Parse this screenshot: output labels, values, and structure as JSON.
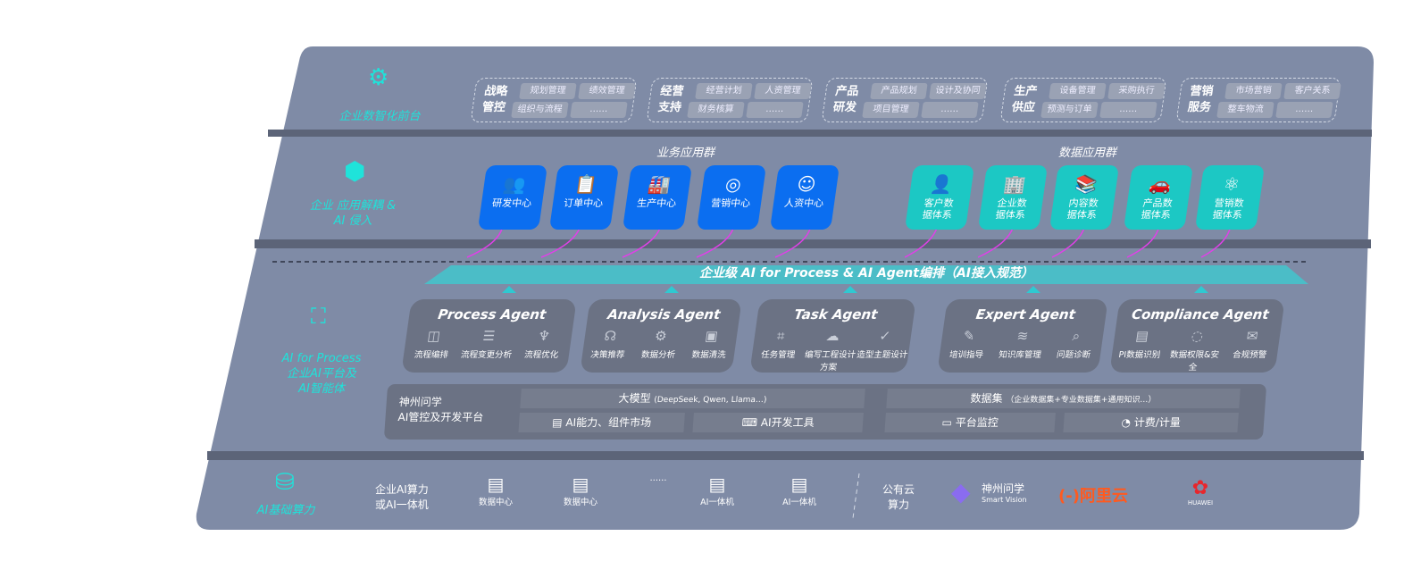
{
  "layers": {
    "front": "企业数智化前台",
    "apps": "企业 应用解耦 & AI 侵入",
    "ai": {
      "line1": "AI for Process",
      "line2": "企业AI平台及",
      "line3": "AI智能体"
    },
    "infra": "AI基础算力"
  },
  "groups": [
    {
      "title": "战略管控",
      "chips": [
        "规划管理",
        "绩效管理",
        "组织与流程",
        "……"
      ]
    },
    {
      "title": "经营支持",
      "chips": [
        "经营计划",
        "人资管理",
        "财务核算",
        "……"
      ]
    },
    {
      "title": "产品研发",
      "chips": [
        "产品规划",
        "设计及协同",
        "项目管理",
        "……"
      ]
    },
    {
      "title": "生产供应",
      "chips": [
        "设备管理",
        "采购执行",
        "预测与订单",
        "……"
      ]
    },
    {
      "title": "营销服务",
      "chips": [
        "市场营销",
        "客户关系",
        "整车物流",
        "……"
      ]
    }
  ],
  "business_apps": {
    "title": "业务应用群",
    "items": [
      {
        "label": "研发中心",
        "icon": "users-icon"
      },
      {
        "label": "订单中心",
        "icon": "clipboard-icon"
      },
      {
        "label": "生产中心",
        "icon": "factory-icon"
      },
      {
        "label": "营销中心",
        "icon": "target-icon"
      },
      {
        "label": "人资中心",
        "icon": "person-icon"
      }
    ]
  },
  "data_apps": {
    "title": "数据应用群",
    "items": [
      {
        "label": "客户数据体系",
        "icon": "user-icon"
      },
      {
        "label": "企业数据体系",
        "icon": "building-icon"
      },
      {
        "label": "内容数据体系",
        "icon": "books-icon"
      },
      {
        "label": "产品数据体系",
        "icon": "car-icon"
      },
      {
        "label": "营销数据体系",
        "icon": "atom-icon"
      }
    ]
  },
  "orchestration": "企业级 AI for Process & AI Agent编排（AI接入规范）",
  "agents": [
    {
      "name": "Process Agent",
      "items": [
        "流程编排",
        "流程变更分析",
        "流程优化"
      ]
    },
    {
      "name": "Analysis Agent",
      "items": [
        "决策推荐",
        "数据分析",
        "数据清洗"
      ]
    },
    {
      "name": "Task Agent",
      "items": [
        "任务管理",
        "编写工程设计方案",
        "造型主题设计"
      ]
    },
    {
      "name": "Expert Agent",
      "items": [
        "培训指导",
        "知识库管理",
        "问题诊断"
      ]
    },
    {
      "name": "Compliance Agent",
      "items": [
        "PI数据识别",
        "数据权限&安全",
        "合规预警"
      ]
    }
  ],
  "platform": {
    "name_line1": "神州问学",
    "name_line2": "AI管控及开发平台",
    "llm": "大模型",
    "llm_note": "(DeepSeek, Qwen, Llama…)",
    "dataset": "数据集",
    "dataset_note": "（企业数据集+专业数据集+通用知识…）",
    "tools": [
      "AI能力、组件市场",
      "AI开发工具",
      "平台监控",
      "计费/计量"
    ]
  },
  "compute": {
    "label_line1": "企业AI算力",
    "label_line2": "或AI一体机",
    "items": [
      "数据中心",
      "数据中心",
      "……",
      "AI一体机",
      "AI一体机"
    ],
    "cloud_line1": "公有云",
    "cloud_line2": "算力",
    "vendors": {
      "sv_cn": "神州问学",
      "sv_en": "Smart Vision",
      "aliyun": "阿里云",
      "huawei": "HUAWEI"
    }
  },
  "colors": {
    "panel": "#7f8ba6",
    "teal": "#1fe3da",
    "blue": "#0b6ef0",
    "cyan": "#1cc8c4",
    "arrow": "#e040e8"
  }
}
